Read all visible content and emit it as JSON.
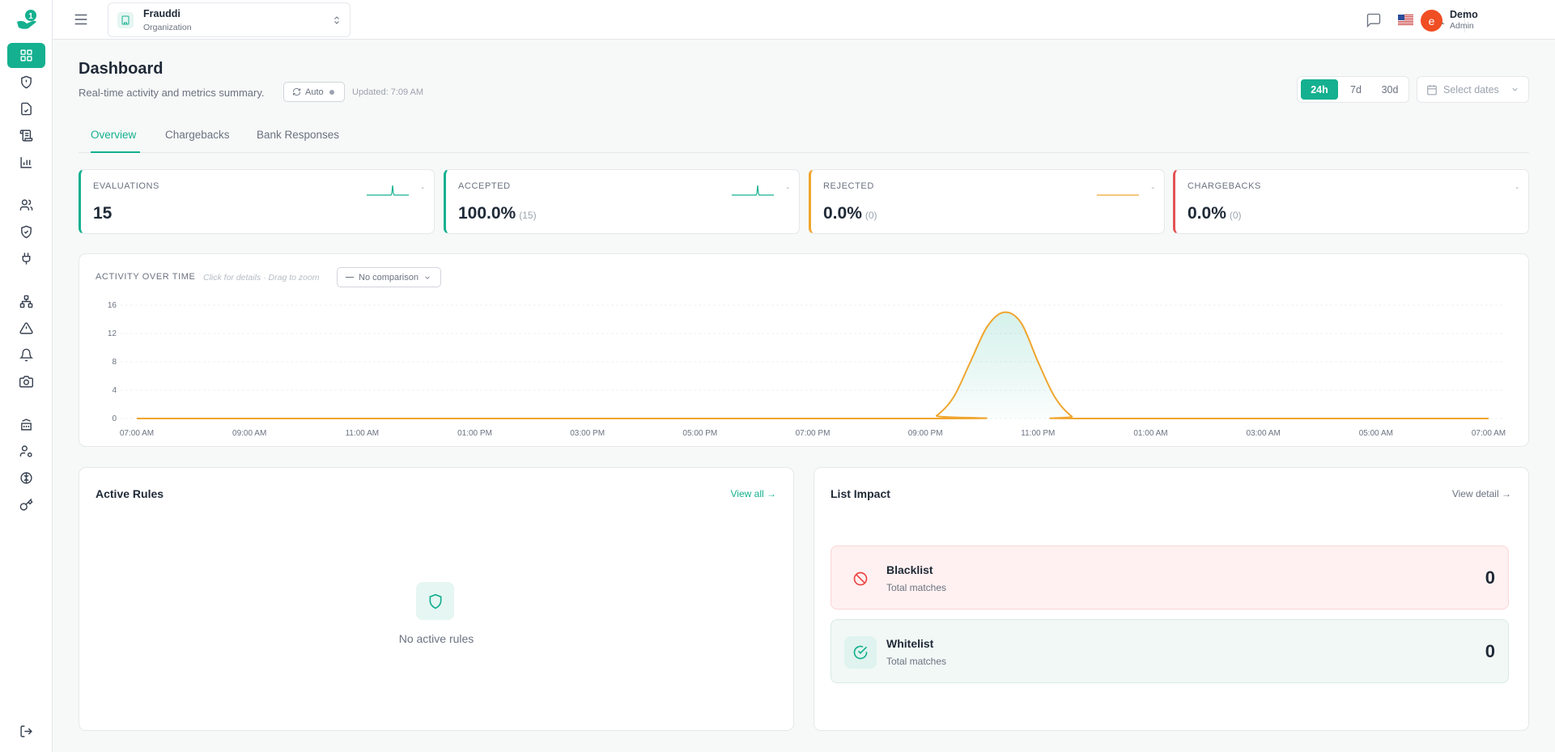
{
  "org": {
    "name": "Frauddi",
    "type": "Organization"
  },
  "user": {
    "initial": "e",
    "name": "Demo",
    "role": "Admin"
  },
  "header": {
    "title": "Dashboard",
    "subtitle": "Real-time activity and metrics summary.",
    "auto_label": "Auto",
    "updated": "Updated: 7:09 AM"
  },
  "range": {
    "options": [
      "24h",
      "7d",
      "30d"
    ],
    "selected": "24h",
    "date_placeholder": "Select dates"
  },
  "tabs": [
    "Overview",
    "Chargebacks",
    "Bank Responses"
  ],
  "metrics": [
    {
      "label": "EVALUATIONS",
      "value": "15",
      "sub": "",
      "trend": "-",
      "accent": "#14b08f"
    },
    {
      "label": "ACCEPTED",
      "value": "100.0%",
      "sub": "(15)",
      "trend": "-",
      "accent": "#14b08f"
    },
    {
      "label": "REJECTED",
      "value": "0.0%",
      "sub": "(0)",
      "trend": "-",
      "accent": "#f0a52e"
    },
    {
      "label": "CHARGEBACKS",
      "value": "0.0%",
      "sub": "(0)",
      "trend": "-",
      "accent": "#e35454"
    }
  ],
  "activity": {
    "title": "ACTIVITY OVER TIME",
    "hint": "Click for details · Drag to zoom",
    "comparison": "No comparison"
  },
  "chart_data": {
    "type": "area",
    "title": "ACTIVITY OVER TIME",
    "xlabel": "",
    "ylabel": "",
    "ylim": [
      0,
      16
    ],
    "yticks": [
      "16",
      "12",
      "8",
      "4",
      "0"
    ],
    "xticks": [
      "07:00 AM",
      "09:00 AM",
      "11:00 AM",
      "01:00 PM",
      "03:00 PM",
      "05:00 PM",
      "07:00 PM",
      "09:00 PM",
      "11:00 PM",
      "01:00 AM",
      "03:00 AM",
      "05:00 AM",
      "07:00 AM"
    ],
    "series": [
      {
        "color": "#f0a52e",
        "points": [
          [
            0,
            0
          ],
          [
            14,
            0
          ],
          [
            14.2,
            0.4
          ],
          [
            14.5,
            3
          ],
          [
            14.8,
            8
          ],
          [
            15.1,
            13
          ],
          [
            15.4,
            15
          ],
          [
            15.7,
            13.5
          ],
          [
            16,
            8
          ],
          [
            16.3,
            3
          ],
          [
            16.6,
            0.3
          ],
          [
            16.8,
            0
          ],
          [
            24,
            0
          ]
        ]
      }
    ],
    "grid": true
  },
  "active_rules": {
    "title": "Active Rules",
    "link": "View all",
    "empty": "No active rules"
  },
  "list_impact": {
    "title": "List Impact",
    "link": "View detail",
    "rows": [
      {
        "name": "Blacklist",
        "sub": "Total matches",
        "count": "0"
      },
      {
        "name": "Whitelist",
        "sub": "Total matches",
        "count": "0"
      }
    ]
  },
  "icons": {
    "sidebar": [
      "dashboard-icon",
      "shield-alert-icon",
      "file-check-icon",
      "scroll-icon",
      "bar-chart-icon",
      "users-icon",
      "shield-check-icon",
      "plug-icon",
      "sitemap-icon",
      "warning-icon",
      "bell-icon",
      "camera-icon",
      "bank-icon",
      "user-cog-icon",
      "brain-icon",
      "key-icon",
      "logout-icon"
    ]
  }
}
